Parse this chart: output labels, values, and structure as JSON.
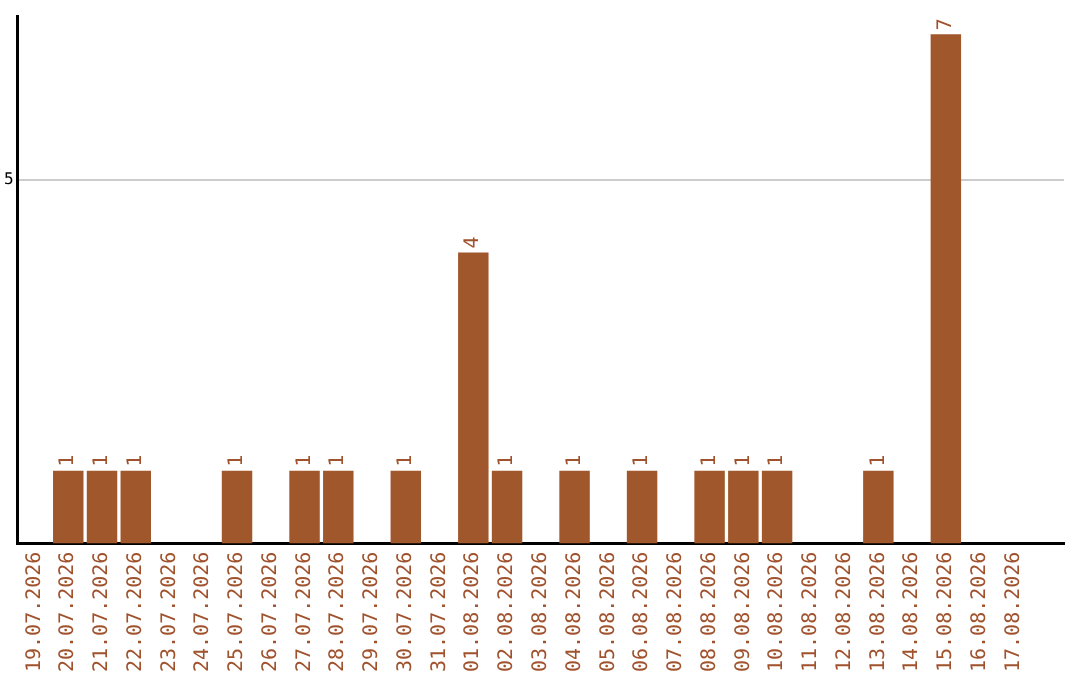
{
  "chart_data": {
    "type": "bar",
    "categories": [
      "19.07.2026",
      "20.07.2026",
      "21.07.2026",
      "22.07.2026",
      "23.07.2026",
      "24.07.2026",
      "25.07.2026",
      "26.07.2026",
      "27.07.2026",
      "28.07.2026",
      "29.07.2026",
      "30.07.2026",
      "31.07.2026",
      "01.08.2026",
      "02.08.2026",
      "03.08.2026",
      "04.08.2026",
      "05.08.2026",
      "06.08.2026",
      "07.08.2026",
      "08.08.2026",
      "09.08.2026",
      "10.08.2026",
      "11.08.2026",
      "12.08.2026",
      "13.08.2026",
      "14.08.2026",
      "15.08.2026",
      "16.08.2026",
      "17.08.2026",
      null
    ],
    "values": [
      null,
      1,
      1,
      1,
      null,
      null,
      1,
      null,
      1,
      1,
      null,
      1,
      null,
      4,
      1,
      null,
      1,
      null,
      1,
      null,
      1,
      1,
      1,
      null,
      null,
      1,
      null,
      7,
      null,
      null,
      null
    ],
    "color": "#a0572b",
    "ylim": [
      0,
      7.25
    ],
    "yticks": [
      5
    ],
    "grid": "y",
    "legend": false,
    "data_labels": true
  }
}
